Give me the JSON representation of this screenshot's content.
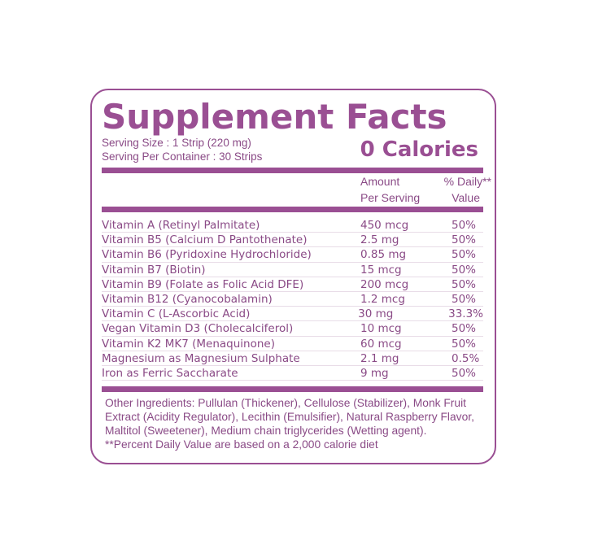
{
  "title": "Supplement Facts",
  "serving_size": "Serving Size : 1 Strip (220 mg)",
  "servings_per_container": "Serving Per Container : 30 Strips",
  "calories": "0 Calories",
  "headers": {
    "amount_line1": "Amount",
    "amount_line2": "Per Serving",
    "dv_line1": "% Daily**",
    "dv_line2": "Value"
  },
  "rows": [
    {
      "name": "Vitamin A (Retinyl Palmitate)",
      "amount": "450 mcg",
      "dv": "50%"
    },
    {
      "name": "Vitamin B5 (Calcium D Pantothenate)",
      "amount": "2.5 mg",
      "dv": "50%"
    },
    {
      "name": "Vitamin B6 (Pyridoxine Hydrochloride)",
      "amount": "0.85 mg",
      "dv": "50%"
    },
    {
      "name": "Vitamin B7 (Biotin)",
      "amount": "15 mcg",
      "dv": "50%"
    },
    {
      "name": "Vitamin B9 (Folate as Folic Acid DFE)",
      "amount": "200 mcg",
      "dv": "50%"
    },
    {
      "name": "Vitamin B12 (Cyanocobalamin)",
      "amount": "1.2 mcg",
      "dv": "50%"
    },
    {
      "name": "Vitamin C (L-Ascorbic Acid)",
      "amount": "30 mg",
      "dv": "33.3%"
    },
    {
      "name": "Vegan Vitamin D3 (Cholecalciferol)",
      "amount": "10 mcg",
      "dv": "50%"
    },
    {
      "name": "Vitamin K2 MK7 (Menaquinone)",
      "amount": "60 mcg",
      "dv": "50%"
    },
    {
      "name": "Magnesium as Magnesium Sulphate",
      "amount": "2.1 mg",
      "dv": "0.5%"
    },
    {
      "name": "Iron as Ferric Saccharate",
      "amount": "9 mg",
      "dv": "50%"
    }
  ],
  "other_ingredients": "Other Ingredients: Pullulan (Thickener), Cellulose (Stabilizer), Monk Fruit Extract (Acidity Regulator), Lecithin (Emulsifier), Natural Raspberry Flavor, Maltitol (Sweetener), Medium chain triglycerides (Wetting agent).",
  "footnote": "**Percent Daily Value are based on a 2,000 calorie diet",
  "colors": {
    "accent": "#9a4f93",
    "text": "#8a4a86"
  }
}
